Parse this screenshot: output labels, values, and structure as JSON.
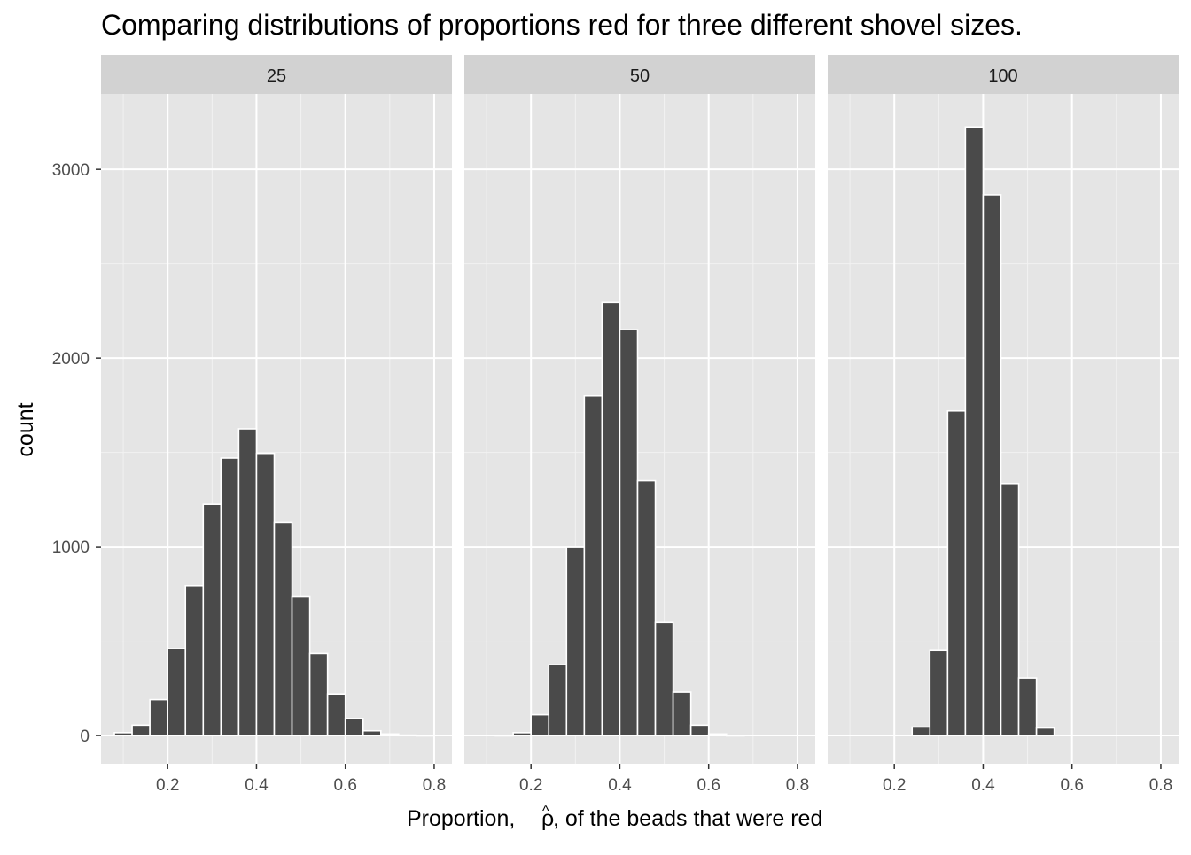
{
  "chart_data": {
    "type": "bar",
    "title": "Comparing distributions of proportions red for three different shovel sizes.",
    "xlabel_prefix": "Proportion,",
    "xlabel_symbol": "ρ",
    "xlabel_hat": "^",
    "xlabel_suffix": ", of the beads that were red",
    "ylabel": "count",
    "xlim": [
      0.05,
      0.84
    ],
    "ylim": [
      -150,
      3400
    ],
    "x_ticks": [
      0.2,
      0.4,
      0.6,
      0.8
    ],
    "x_tick_labels": [
      "0.2",
      "0.4",
      "0.6",
      "0.8"
    ],
    "y_ticks": [
      0,
      1000,
      2000,
      3000
    ],
    "y_tick_labels": [
      "0",
      "1000",
      "2000",
      "3000"
    ],
    "bin_width": 0.04,
    "grid": true,
    "bar_color": "#4a4a4a",
    "bar_edge_color": "#ffffff",
    "panel_bg": "#e5e5e5",
    "strip_bg": "#d2d2d2",
    "facets": [
      {
        "label": "25",
        "bins": [
          {
            "x": 0.1,
            "count": 15
          },
          {
            "x": 0.14,
            "count": 55
          },
          {
            "x": 0.18,
            "count": 190
          },
          {
            "x": 0.22,
            "count": 460
          },
          {
            "x": 0.26,
            "count": 795
          },
          {
            "x": 0.3,
            "count": 1225
          },
          {
            "x": 0.34,
            "count": 1470
          },
          {
            "x": 0.38,
            "count": 1625
          },
          {
            "x": 0.42,
            "count": 1495
          },
          {
            "x": 0.46,
            "count": 1130
          },
          {
            "x": 0.5,
            "count": 735
          },
          {
            "x": 0.54,
            "count": 435
          },
          {
            "x": 0.58,
            "count": 220
          },
          {
            "x": 0.62,
            "count": 90
          },
          {
            "x": 0.66,
            "count": 25
          },
          {
            "x": 0.7,
            "count": 8
          },
          {
            "x": 0.74,
            "count": 2
          },
          {
            "x": 0.78,
            "count": 1
          }
        ]
      },
      {
        "label": "50",
        "bins": [
          {
            "x": 0.14,
            "count": 1
          },
          {
            "x": 0.18,
            "count": 15
          },
          {
            "x": 0.22,
            "count": 110
          },
          {
            "x": 0.26,
            "count": 375
          },
          {
            "x": 0.3,
            "count": 1000
          },
          {
            "x": 0.34,
            "count": 1800
          },
          {
            "x": 0.38,
            "count": 2295
          },
          {
            "x": 0.42,
            "count": 2150
          },
          {
            "x": 0.46,
            "count": 1350
          },
          {
            "x": 0.5,
            "count": 600
          },
          {
            "x": 0.54,
            "count": 230
          },
          {
            "x": 0.58,
            "count": 55
          },
          {
            "x": 0.62,
            "count": 8
          },
          {
            "x": 0.66,
            "count": 1
          }
        ]
      },
      {
        "label": "100",
        "bins": [
          {
            "x": 0.26,
            "count": 45
          },
          {
            "x": 0.3,
            "count": 450
          },
          {
            "x": 0.34,
            "count": 1720
          },
          {
            "x": 0.38,
            "count": 3225
          },
          {
            "x": 0.42,
            "count": 2865
          },
          {
            "x": 0.46,
            "count": 1335
          },
          {
            "x": 0.5,
            "count": 305
          },
          {
            "x": 0.54,
            "count": 40
          }
        ]
      }
    ]
  }
}
